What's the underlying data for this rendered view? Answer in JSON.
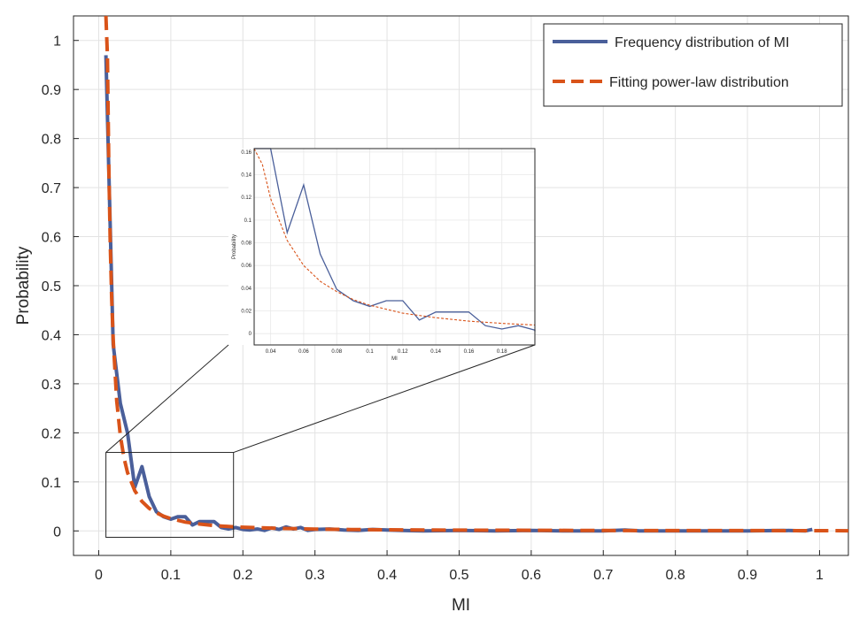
{
  "chart_data": {
    "type": "line",
    "title": "",
    "xlabel": "MI",
    "ylabel": "Probability",
    "xlim": [
      -0.035,
      1.04
    ],
    "ylim": [
      -0.05,
      1.05
    ],
    "xticks": [
      0,
      0.1,
      0.2,
      0.3,
      0.4,
      0.5,
      0.6,
      0.7,
      0.8,
      0.9,
      1
    ],
    "xtick_labels": [
      "0",
      "0.1",
      "0.2",
      "0.3",
      "0.4",
      "0.5",
      "0.6",
      "0.7",
      "0.8",
      "0.9",
      "1"
    ],
    "yticks": [
      0,
      0.1,
      0.2,
      0.3,
      0.4,
      0.5,
      0.6,
      0.7,
      0.8,
      0.9,
      1
    ],
    "ytick_labels": [
      "0",
      "0.1",
      "0.2",
      "0.3",
      "0.4",
      "0.5",
      "0.6",
      "0.7",
      "0.8",
      "0.9",
      "1"
    ],
    "grid": true,
    "legend_position": "top-right",
    "series": [
      {
        "name": "Frequency distribution of MI",
        "style": "solid",
        "color": "#4a5f9a",
        "x": [
          0.01,
          0.02,
          0.03,
          0.04,
          0.05,
          0.06,
          0.07,
          0.08,
          0.09,
          0.1,
          0.11,
          0.12,
          0.13,
          0.14,
          0.15,
          0.16,
          0.17,
          0.18,
          0.19,
          0.2,
          0.21,
          0.22,
          0.23,
          0.24,
          0.25,
          0.26,
          0.27,
          0.28,
          0.29,
          0.3,
          0.32,
          0.34,
          0.36,
          0.38,
          0.4,
          0.42,
          0.45,
          0.5,
          0.55,
          0.6,
          0.65,
          0.7,
          0.73,
          0.75,
          0.8,
          0.85,
          0.9,
          0.95,
          0.98,
          0.99
        ],
        "y": [
          0.97,
          0.38,
          0.26,
          0.2,
          0.089,
          0.131,
          0.07,
          0.039,
          0.029,
          0.024,
          0.029,
          0.029,
          0.012,
          0.019,
          0.019,
          0.019,
          0.007,
          0.004,
          0.007,
          0.003,
          0.002,
          0.004,
          0.001,
          0.006,
          0.003,
          0.008,
          0.004,
          0.007,
          0.001,
          0.003,
          0.004,
          0.002,
          0.001,
          0.003,
          0.002,
          0.001,
          0.0,
          0.001,
          0.0,
          0.001,
          0.0,
          0.0,
          0.002,
          0.0,
          0.0,
          0.0,
          0.0,
          0.001,
          0.0,
          0.003
        ]
      },
      {
        "name": "Fitting power-law distribution",
        "style": "dashed",
        "color": "#d95319",
        "x": [
          0.01,
          0.012,
          0.014,
          0.016,
          0.018,
          0.02,
          0.025,
          0.03,
          0.035,
          0.04,
          0.05,
          0.06,
          0.07,
          0.08,
          0.09,
          0.1,
          0.12,
          0.14,
          0.16,
          0.18,
          0.2,
          0.25,
          0.3,
          0.35,
          0.4,
          0.5,
          0.6,
          0.7,
          0.8,
          0.9,
          1.0,
          1.04
        ],
        "y": [
          1.32,
          0.969,
          0.741,
          0.585,
          0.474,
          0.391,
          0.265,
          0.194,
          0.149,
          0.119,
          0.082,
          0.06,
          0.046,
          0.037,
          0.03,
          0.025,
          0.018,
          0.014,
          0.011,
          0.009,
          0.0075,
          0.0052,
          0.0038,
          0.0029,
          0.0023,
          0.0016,
          0.0012,
          0.0009,
          0.0007,
          0.0006,
          0.0005,
          0.0004
        ]
      }
    ],
    "inset": {
      "xlabel": "MI",
      "ylabel": "Probability",
      "xlim": [
        0.03,
        0.2
      ],
      "ylim": [
        -0.01,
        0.163
      ],
      "xticks": [
        0.04,
        0.06,
        0.08,
        0.1,
        0.12,
        0.14,
        0.16,
        0.18
      ],
      "xtick_labels": [
        "0.04",
        "0.06",
        "0.08",
        "0.1",
        "0.12",
        "0.14",
        "0.16",
        "0.18"
      ],
      "yticks": [
        0,
        0.02,
        0.04,
        0.06,
        0.08,
        0.1,
        0.12,
        0.14,
        0.16
      ],
      "ytick_labels": [
        "0",
        "0.02",
        "0.04",
        "0.06",
        "0.08",
        "0.1",
        "0.12",
        "0.14",
        "0.16"
      ],
      "zoom_region": {
        "x": [
          0.01,
          0.187
        ],
        "y": [
          -0.013,
          0.16
        ]
      }
    }
  }
}
